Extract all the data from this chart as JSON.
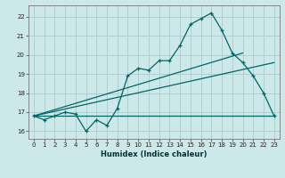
{
  "xlabel": "Humidex (Indice chaleur)",
  "bg_color": "#cce8e8",
  "grid_color": "#aacccc",
  "line_color": "#006666",
  "xlim": [
    -0.5,
    23.5
  ],
  "ylim": [
    15.6,
    22.6
  ],
  "yticks": [
    16,
    17,
    18,
    19,
    20,
    21,
    22
  ],
  "xticks": [
    0,
    1,
    2,
    3,
    4,
    5,
    6,
    7,
    8,
    9,
    10,
    11,
    12,
    13,
    14,
    15,
    16,
    17,
    18,
    19,
    20,
    21,
    22,
    23
  ],
  "main_x": [
    0,
    1,
    2,
    3,
    4,
    5,
    6,
    7,
    8,
    9,
    10,
    11,
    12,
    13,
    14,
    15,
    16,
    17,
    18,
    19,
    20,
    21,
    22,
    23
  ],
  "main_y": [
    16.8,
    16.6,
    16.8,
    17.0,
    16.9,
    16.0,
    16.6,
    16.3,
    17.2,
    18.9,
    19.3,
    19.2,
    19.7,
    19.7,
    20.5,
    21.6,
    21.9,
    22.2,
    21.3,
    20.1,
    19.6,
    18.9,
    18.0,
    16.8
  ],
  "flat_line_x": [
    0,
    23
  ],
  "flat_line_y": [
    16.8,
    16.8
  ],
  "trend1_x": [
    0,
    20
  ],
  "trend1_y": [
    16.8,
    20.1
  ],
  "trend2_x": [
    0,
    23
  ],
  "trend2_y": [
    16.8,
    19.6
  ]
}
